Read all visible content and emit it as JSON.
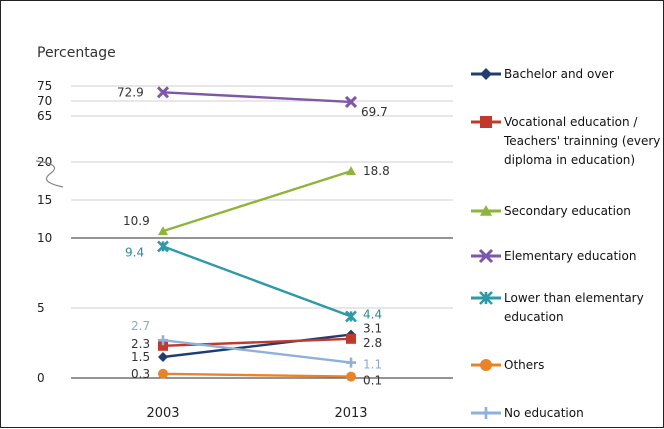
{
  "chart_data": {
    "type": "line",
    "ylabel": "Percentage",
    "x": [
      "2003",
      "2013"
    ],
    "yticks": [
      "75",
      "70",
      "65",
      "20",
      "15",
      "10",
      "5",
      "0"
    ],
    "axis_break": true,
    "legend_position": "right",
    "series": [
      {
        "name": "Bachelor and over",
        "values": [
          1.5,
          3.1
        ],
        "labels": [
          "1.5",
          "3.1"
        ],
        "color": "#1f3d73",
        "marker": "diamond"
      },
      {
        "name": "Vocational education / Teachers' trainning (every diploma in education)",
        "name_lines": [
          "Vocational education /",
          "Teachers' trainning (every",
          "diploma in education)"
        ],
        "values": [
          2.3,
          2.8
        ],
        "labels": [
          "2.3",
          "2.8"
        ],
        "color": "#c0392b",
        "marker": "square"
      },
      {
        "name": "Secondary education",
        "values": [
          10.9,
          18.8
        ],
        "labels": [
          "10.9",
          "18.8"
        ],
        "color": "#8fb43a",
        "marker": "triangle"
      },
      {
        "name": "Elementary education",
        "values": [
          72.9,
          69.7
        ],
        "labels": [
          "72.9",
          "69.7"
        ],
        "color": "#7e57a8",
        "marker": "cross"
      },
      {
        "name": "Lower than elementary education",
        "name_lines": [
          "Lower than elementary",
          "education"
        ],
        "values": [
          9.4,
          4.4
        ],
        "labels": [
          "9.4",
          "4.4"
        ],
        "color": "#2e9aa8",
        "marker": "star"
      },
      {
        "name": "Others",
        "values": [
          0.3,
          0.1
        ],
        "labels": [
          "0.3",
          "0.1"
        ],
        "color": "#e8832a",
        "marker": "circle"
      },
      {
        "name": "No education",
        "values": [
          2.7,
          1.1
        ],
        "labels": [
          "2.7",
          "1.1"
        ],
        "color": "#8fb0dc",
        "marker": "plus"
      }
    ]
  }
}
